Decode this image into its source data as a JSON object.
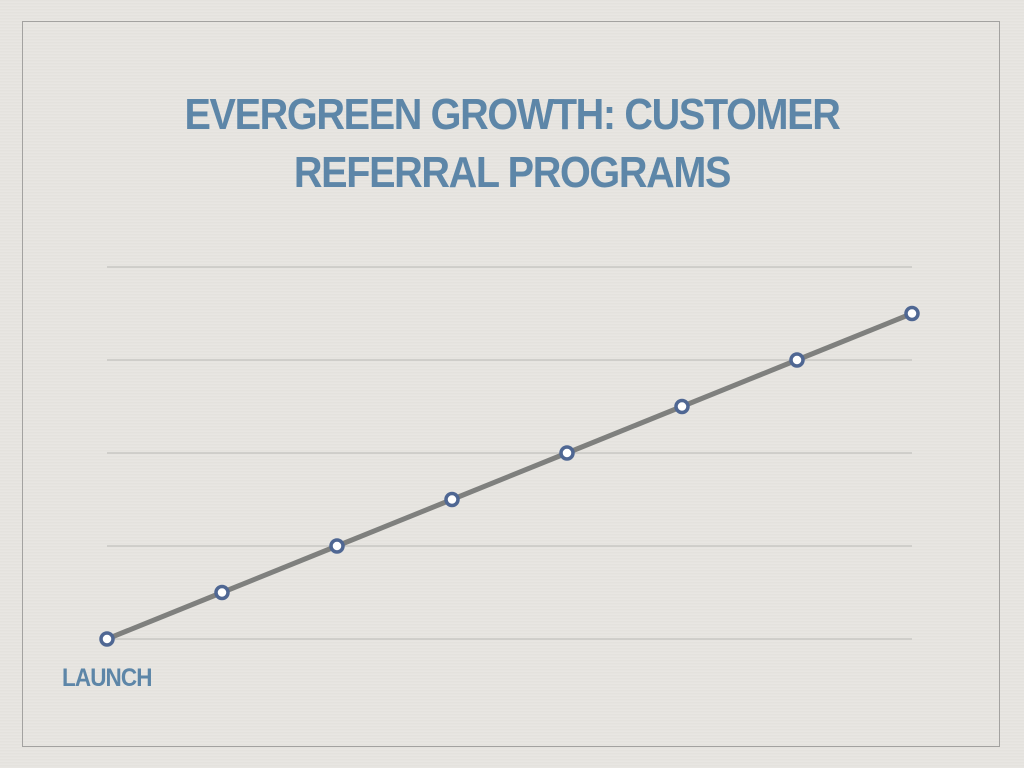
{
  "slide": {
    "title": "EVERGREEN GROWTH: CUSTOMER REFERRAL PROGRAMS"
  },
  "chart_data": {
    "type": "line",
    "title": "EVERGREEN GROWTH: CUSTOMER REFERRAL PROGRAMS",
    "xlabel": "",
    "ylabel": "",
    "x": [
      0,
      1,
      2,
      3,
      4,
      5,
      6,
      7
    ],
    "x_tick_labels": [
      "LAUNCH",
      "",
      "",
      "",
      "",
      "",
      "",
      ""
    ],
    "series": [
      {
        "values": [
          0,
          0.5,
          1,
          1.5,
          2,
          2.5,
          3,
          3.5
        ]
      }
    ],
    "ylim": [
      0,
      4
    ],
    "y_gridlines": [
      0,
      1,
      2,
      3,
      4
    ],
    "grid": true,
    "legend": "none",
    "colors": {
      "line": "#7f807e",
      "marker_stroke": "#4f6793",
      "marker_fill": "#ffffff",
      "grid": "#b9b8b5",
      "text": "#5d86a8"
    }
  }
}
